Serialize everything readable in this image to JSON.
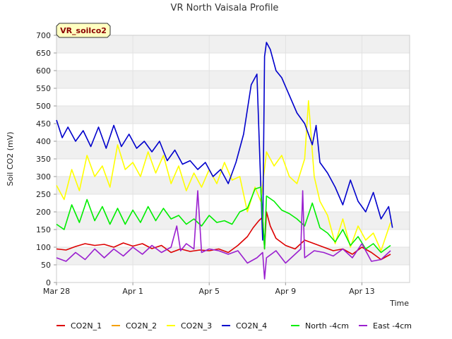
{
  "chart_data": {
    "type": "line",
    "title": "VR North Vaisala Profile",
    "xlabel": "Time",
    "ylabel": "Soil CO2 (mV)",
    "badge": "VR_soilco2",
    "ylim": [
      0,
      700
    ],
    "yticks": [
      0,
      50,
      100,
      150,
      200,
      250,
      300,
      350,
      400,
      450,
      500,
      550,
      600,
      650,
      700
    ],
    "xlim": [
      0,
      18.5
    ],
    "xticks": [
      {
        "value": 0,
        "label": "Mar 28"
      },
      {
        "value": 4,
        "label": "Apr 1"
      },
      {
        "value": 8,
        "label": "Apr 5"
      },
      {
        "value": 12,
        "label": "Apr 9"
      },
      {
        "value": 16,
        "label": "Apr 13"
      }
    ],
    "grid": true,
    "legend": "bottom",
    "series": [
      {
        "name": "CO2N_1",
        "color": "#dd0000",
        "x": [
          0,
          0.5,
          1,
          1.5,
          2,
          2.5,
          3,
          3.5,
          4,
          4.5,
          5,
          5.5,
          6,
          6.5,
          7,
          7.5,
          8,
          8.5,
          9,
          9.5,
          10,
          10.3,
          10.6,
          10.8,
          10.9,
          11,
          11.2,
          11.5,
          12,
          12.5,
          13,
          13.5,
          14,
          14.5,
          15,
          15.5,
          16,
          16.5,
          17,
          17.5
        ],
        "y": [
          95,
          92,
          102,
          110,
          105,
          108,
          100,
          112,
          103,
          110,
          96,
          105,
          85,
          95,
          88,
          92,
          90,
          95,
          85,
          105,
          130,
          155,
          175,
          185,
          95,
          200,
          160,
          125,
          105,
          95,
          120,
          110,
          100,
          90,
          95,
          80,
          100,
          85,
          65,
          80
        ]
      },
      {
        "name": "CO2N_2",
        "color": "#f5a000",
        "x": [],
        "y": []
      },
      {
        "name": "CO2N_3",
        "color": "#ffff00",
        "x": [
          0,
          0.4,
          0.8,
          1.2,
          1.6,
          2,
          2.4,
          2.8,
          3.2,
          3.6,
          4,
          4.4,
          4.8,
          5.2,
          5.6,
          6,
          6.4,
          6.8,
          7.2,
          7.6,
          8,
          8.4,
          8.8,
          9.2,
          9.6,
          10,
          10.4,
          10.7,
          11,
          11.4,
          11.8,
          12.2,
          12.6,
          13,
          13.2,
          13.5,
          13.8,
          14.2,
          14.6,
          15,
          15.4,
          15.8,
          16.2,
          16.6,
          17,
          17.5
        ],
        "y": [
          275,
          235,
          320,
          260,
          360,
          300,
          330,
          270,
          390,
          320,
          340,
          300,
          370,
          310,
          360,
          280,
          330,
          260,
          310,
          270,
          320,
          280,
          340,
          290,
          300,
          200,
          270,
          230,
          370,
          330,
          360,
          300,
          280,
          350,
          515,
          300,
          230,
          190,
          110,
          180,
          100,
          160,
          120,
          140,
          90,
          170
        ]
      },
      {
        "name": "CO2N_4",
        "color": "#0000cc",
        "x": [
          0,
          0.3,
          0.6,
          1,
          1.4,
          1.8,
          2.2,
          2.6,
          3,
          3.4,
          3.8,
          4.2,
          4.6,
          5,
          5.4,
          5.8,
          6.2,
          6.6,
          7,
          7.4,
          7.8,
          8.2,
          8.6,
          9,
          9.4,
          9.8,
          10.2,
          10.5,
          10.8,
          10.9,
          11,
          11.2,
          11.5,
          11.8,
          12.2,
          12.6,
          13,
          13.4,
          13.6,
          13.8,
          14.2,
          14.6,
          15,
          15.4,
          15.8,
          16.2,
          16.6,
          17,
          17.4,
          17.6
        ],
        "y": [
          460,
          410,
          440,
          400,
          430,
          385,
          440,
          380,
          445,
          385,
          420,
          380,
          400,
          370,
          400,
          345,
          375,
          335,
          345,
          320,
          340,
          300,
          320,
          280,
          340,
          420,
          560,
          590,
          120,
          640,
          680,
          660,
          600,
          580,
          530,
          480,
          450,
          390,
          445,
          340,
          310,
          270,
          220,
          290,
          230,
          200,
          255,
          180,
          215,
          155
        ]
      },
      {
        "name": "North -4cm",
        "color": "#00ee00",
        "x": [
          0,
          0.4,
          0.8,
          1.2,
          1.6,
          2,
          2.4,
          2.8,
          3.2,
          3.6,
          4,
          4.4,
          4.8,
          5.2,
          5.6,
          6,
          6.4,
          6.8,
          7.2,
          7.6,
          8,
          8.4,
          8.8,
          9.2,
          9.6,
          10,
          10.4,
          10.7,
          10.9,
          11,
          11.4,
          11.8,
          12.2,
          12.6,
          13,
          13.4,
          13.8,
          14.2,
          14.6,
          15,
          15.4,
          15.8,
          16.2,
          16.6,
          17,
          17.5
        ],
        "y": [
          165,
          150,
          220,
          170,
          235,
          175,
          215,
          165,
          210,
          165,
          205,
          170,
          215,
          175,
          210,
          180,
          190,
          165,
          180,
          160,
          190,
          170,
          175,
          165,
          200,
          210,
          265,
          270,
          95,
          245,
          230,
          205,
          195,
          180,
          160,
          225,
          155,
          140,
          115,
          150,
          105,
          130,
          95,
          110,
          85,
          105
        ]
      },
      {
        "name": "East -4cm",
        "color": "#9a1fcf",
        "x": [
          0,
          0.5,
          1,
          1.5,
          2,
          2.5,
          3,
          3.5,
          4,
          4.5,
          5,
          5.5,
          6,
          6.3,
          6.5,
          6.8,
          7.2,
          7.4,
          7.6,
          8,
          8.5,
          9,
          9.5,
          10,
          10.5,
          10.8,
          10.9,
          11,
          11.5,
          12,
          12.5,
          12.8,
          12.9,
          13,
          13.5,
          14,
          14.5,
          15,
          15.5,
          16,
          16.5,
          17,
          17.5
        ],
        "y": [
          70,
          60,
          85,
          65,
          95,
          70,
          95,
          75,
          100,
          80,
          105,
          85,
          100,
          160,
          90,
          110,
          95,
          260,
          85,
          95,
          90,
          80,
          90,
          55,
          70,
          85,
          10,
          70,
          90,
          55,
          80,
          95,
          260,
          70,
          90,
          85,
          75,
          95,
          70,
          110,
          60,
          65,
          90
        ]
      }
    ]
  }
}
